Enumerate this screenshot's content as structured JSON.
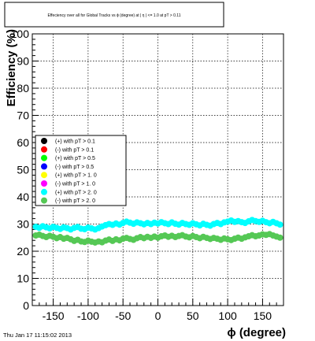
{
  "chart_data": {
    "type": "scatter",
    "title": "Effeciency over all for Global Tracks vs ϕ (degree) at | η | <= 1.0 at pT > 0.11",
    "xlabel": "ϕ (degree)",
    "ylabel": "Efficiency (%)",
    "xlim": [
      -180,
      180
    ],
    "ylim": [
      0,
      100
    ],
    "xticks": [
      -150,
      -100,
      -50,
      0,
      50,
      100,
      150
    ],
    "yticks": [
      0,
      10,
      20,
      30,
      40,
      50,
      60,
      70,
      80,
      90,
      100
    ],
    "grid": true,
    "legend_position": "middle-left",
    "footer": "Thu Jan 17 11:15:02 2013",
    "series": [
      {
        "name": "(+) with pT > 0.1",
        "color": "#000000",
        "values": []
      },
      {
        "name": "(-) with pT > 0.1",
        "color": "#ff0000",
        "values": []
      },
      {
        "name": "(+) with pT > 0.5",
        "color": "#00ff00",
        "values": []
      },
      {
        "name": "(-) with pT > 0.5",
        "color": "#0000ff",
        "values": []
      },
      {
        "name": "(+) with pT > 1. 0",
        "color": "#ffff00",
        "values": []
      },
      {
        "name": "(-) with pT > 1. 0",
        "color": "#ff00ff",
        "values": []
      },
      {
        "name": "(+) with pT > 2. 0",
        "color": "#00ffff",
        "x": [
          -175,
          -170,
          -165,
          -160,
          -155,
          -150,
          -145,
          -140,
          -135,
          -130,
          -125,
          -120,
          -115,
          -110,
          -105,
          -100,
          -95,
          -90,
          -85,
          -80,
          -75,
          -70,
          -65,
          -60,
          -55,
          -50,
          -45,
          -40,
          -35,
          -30,
          -25,
          -20,
          -15,
          -10,
          -5,
          0,
          5,
          10,
          15,
          20,
          25,
          30,
          35,
          40,
          45,
          50,
          55,
          60,
          65,
          70,
          75,
          80,
          85,
          90,
          95,
          100,
          105,
          110,
          115,
          120,
          125,
          130,
          135,
          140,
          145,
          150,
          155,
          160,
          165,
          170,
          175
        ],
        "values": [
          29.0,
          28.6,
          29.2,
          28.8,
          28.4,
          29.0,
          28.6,
          28.2,
          28.8,
          28.5,
          28.0,
          28.6,
          28.9,
          28.3,
          28.1,
          28.7,
          28.4,
          28.0,
          28.5,
          29.1,
          29.6,
          30.0,
          29.7,
          30.2,
          29.8,
          30.4,
          30.9,
          30.5,
          30.1,
          30.6,
          30.3,
          29.9,
          30.4,
          30.0,
          30.5,
          30.2,
          30.7,
          30.3,
          30.0,
          30.6,
          30.1,
          29.8,
          30.4,
          30.0,
          29.7,
          30.3,
          29.9,
          29.5,
          30.1,
          29.7,
          29.4,
          30.0,
          30.4,
          30.0,
          30.6,
          30.9,
          31.3,
          30.8,
          31.1,
          30.7,
          30.4,
          31.0,
          31.5,
          31.1,
          30.8,
          31.2,
          30.7,
          30.3,
          30.8,
          30.3,
          29.8
        ]
      },
      {
        "name": "(-) with pT > 2. 0",
        "color": "#55c855",
        "x": [
          -175,
          -170,
          -165,
          -160,
          -155,
          -150,
          -145,
          -140,
          -135,
          -130,
          -125,
          -120,
          -115,
          -110,
          -105,
          -100,
          -95,
          -90,
          -85,
          -80,
          -75,
          -70,
          -65,
          -60,
          -55,
          -50,
          -45,
          -40,
          -35,
          -30,
          -25,
          -20,
          -15,
          -10,
          -5,
          0,
          5,
          10,
          15,
          20,
          25,
          30,
          35,
          40,
          45,
          50,
          55,
          60,
          65,
          70,
          75,
          80,
          85,
          90,
          95,
          100,
          105,
          110,
          115,
          120,
          125,
          130,
          135,
          140,
          145,
          150,
          155,
          160,
          165,
          170,
          175
        ],
        "values": [
          25.8,
          26.1,
          25.6,
          25.2,
          25.7,
          25.3,
          24.8,
          25.2,
          24.6,
          24.9,
          24.4,
          23.8,
          24.2,
          23.6,
          23.4,
          23.9,
          23.5,
          23.2,
          23.6,
          23.3,
          23.9,
          24.3,
          23.8,
          24.4,
          24.0,
          24.6,
          24.9,
          24.5,
          24.2,
          24.8,
          25.2,
          24.8,
          25.3,
          24.9,
          25.4,
          25.0,
          25.5,
          25.8,
          25.3,
          25.7,
          25.2,
          25.6,
          25.9,
          25.4,
          25.1,
          25.6,
          25.2,
          24.8,
          25.3,
          24.9,
          24.5,
          24.9,
          24.6,
          24.2,
          24.7,
          24.4,
          24.1,
          24.6,
          25.0,
          24.6,
          25.1,
          25.5,
          25.9,
          25.5,
          25.8,
          26.2,
          26.0,
          26.3,
          25.8,
          25.4,
          25.0
        ]
      }
    ]
  }
}
